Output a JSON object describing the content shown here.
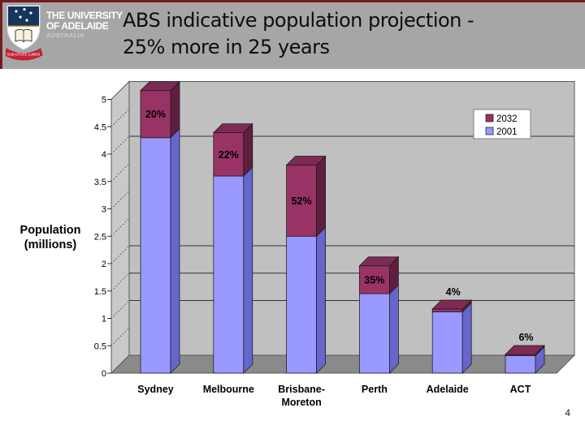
{
  "slide": {
    "page_number": "4",
    "title_line1": "ABS  indicative population projection -",
    "title_line2": "25% more in 25 years"
  },
  "header": {
    "university_line1": "THE UNIVERSITY",
    "university_line2": "OF ADELAIDE",
    "university_line3": "AUSTRALIA",
    "crest_motto": "SUB CRUCE LUMEN",
    "banner_color": "#a6a6a6",
    "accent_color": "#731d23"
  },
  "chart_data": {
    "type": "bar",
    "stacked": true,
    "three_d": true,
    "title": "",
    "ylabel_line1": "Population",
    "ylabel_line2": "(millions)",
    "xlabel": "",
    "categories": [
      "Sydney",
      "Melbourne",
      "Brisbane-Moreton",
      "Perth",
      "Adelaide",
      "ACT"
    ],
    "series": [
      {
        "name": "2001",
        "values": [
          4.3,
          3.6,
          2.5,
          1.45,
          1.12,
          0.32
        ]
      },
      {
        "name": "2032",
        "increments": [
          0.86,
          0.79,
          1.3,
          0.51,
          0.05,
          0.02
        ],
        "totals": [
          5.16,
          4.39,
          3.8,
          1.96,
          1.17,
          0.34
        ]
      }
    ],
    "growth_labels": [
      "20%",
      "22%",
      "52%",
      "35%",
      "4%",
      "6%"
    ],
    "y_ticks": [
      0,
      0.5,
      1,
      1.5,
      2,
      2.5,
      3,
      3.5,
      4,
      4.5,
      5
    ],
    "ylim": [
      0,
      5
    ],
    "wall_gridline_values": [
      4,
      2,
      1.5,
      1
    ],
    "legend": {
      "position": "top-right",
      "entries": [
        {
          "label": "2032",
          "color": "#993366"
        },
        {
          "label": "2001",
          "color": "#9999ff"
        }
      ]
    },
    "colors": {
      "bar_2001_front": "#9999ff",
      "bar_2001_side": "#6666cc",
      "bar_2032_front": "#993366",
      "bar_2032_side": "#5e1f3f",
      "bar_2032_top": "#7d2b55",
      "wall_back": "#c0c0c0",
      "wall_side": "#c9c9c9",
      "floor": "#8a8a8a",
      "gridline": "#333333",
      "outline": "#1a1a1a"
    }
  }
}
